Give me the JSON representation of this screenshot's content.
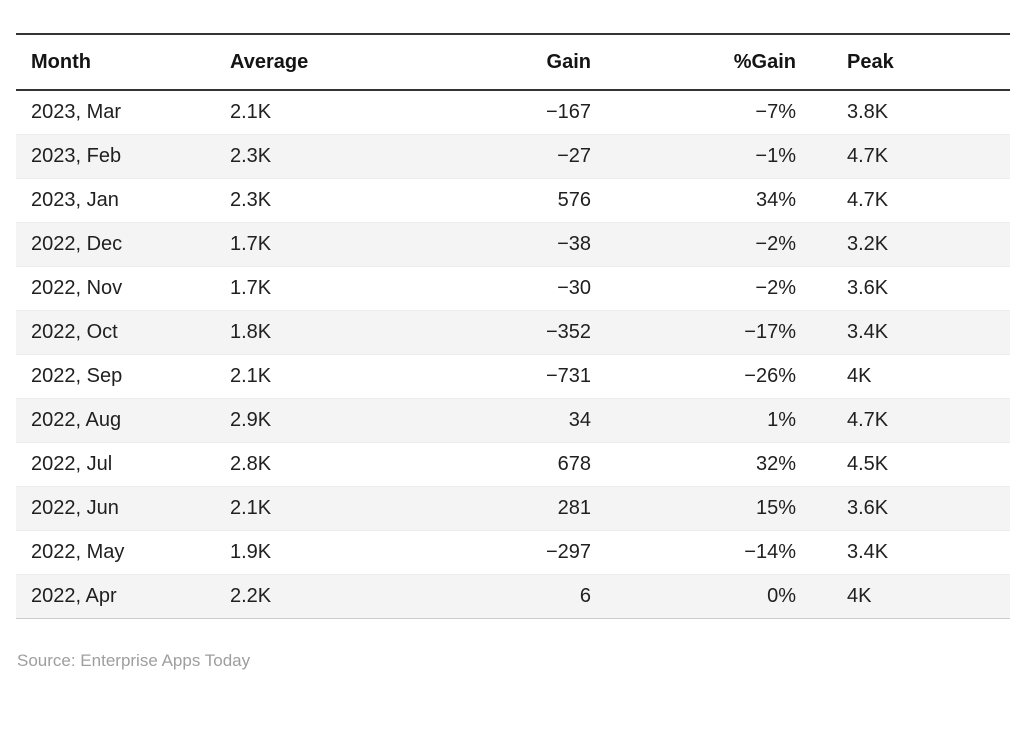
{
  "table": {
    "columns": [
      {
        "label": "Month",
        "align": "left"
      },
      {
        "label": "Average",
        "align": "left"
      },
      {
        "label": "Gain",
        "align": "right"
      },
      {
        "label": "%Gain",
        "align": "right"
      },
      {
        "label": "Peak",
        "align": "left"
      }
    ],
    "rows": [
      [
        "2023, Mar",
        "2.1K",
        "−167",
        "−7%",
        "3.8K"
      ],
      [
        "2023, Feb",
        "2.3K",
        "−27",
        "−1%",
        "4.7K"
      ],
      [
        "2023, Jan",
        "2.3K",
        "576",
        "34%",
        "4.7K"
      ],
      [
        "2022, Dec",
        "1.7K",
        "−38",
        "−2%",
        "3.2K"
      ],
      [
        "2022, Nov",
        "1.7K",
        "−30",
        "−2%",
        "3.6K"
      ],
      [
        "2022, Oct",
        "1.8K",
        "−352",
        "−17%",
        "3.4K"
      ],
      [
        "2022, Sep",
        "2.1K",
        "−731",
        "−26%",
        "4K"
      ],
      [
        "2022, Aug",
        "2.9K",
        "34",
        "1%",
        "4.7K"
      ],
      [
        "2022, Jul",
        "2.8K",
        "678",
        "32%",
        "4.5K"
      ],
      [
        "2022, Jun",
        "2.1K",
        "281",
        "15%",
        "3.6K"
      ],
      [
        "2022, May",
        "1.9K",
        "−297",
        "−14%",
        "3.4K"
      ],
      [
        "2022, Apr",
        "2.2K",
        "6",
        "0%",
        "4K"
      ]
    ]
  },
  "footer": {
    "source_label": "Source: Enterprise Apps Today"
  },
  "colors": {
    "border-strong": "#343434",
    "border-light": "#cccccc",
    "row-divider": "#ececec",
    "stripe": "#f4f4f4",
    "text": "#202020",
    "header-text": "#141414",
    "muted": "#9e9e9e"
  },
  "chart_data": {
    "type": "table",
    "title": "",
    "categories": [
      "2023, Mar",
      "2023, Feb",
      "2023, Jan",
      "2022, Dec",
      "2022, Nov",
      "2022, Oct",
      "2022, Sep",
      "2022, Aug",
      "2022, Jul",
      "2022, Jun",
      "2022, May",
      "2022, Apr"
    ],
    "series": [
      {
        "name": "Average",
        "values": [
          "2.1K",
          "2.3K",
          "2.3K",
          "1.7K",
          "1.7K",
          "1.8K",
          "2.1K",
          "2.9K",
          "2.8K",
          "2.1K",
          "1.9K",
          "2.2K"
        ]
      },
      {
        "name": "Gain",
        "values": [
          -167,
          -27,
          576,
          -38,
          -30,
          -352,
          -731,
          34,
          678,
          281,
          -297,
          6
        ]
      },
      {
        "name": "%Gain",
        "values": [
          -7,
          -1,
          34,
          -2,
          -2,
          -17,
          -26,
          1,
          32,
          15,
          -14,
          0
        ]
      },
      {
        "name": "Peak",
        "values": [
          "3.8K",
          "4.7K",
          "4.7K",
          "3.2K",
          "3.6K",
          "3.4K",
          "4K",
          "4.7K",
          "4.5K",
          "3.6K",
          "3.4K",
          "4K"
        ]
      }
    ],
    "legend": false,
    "grid": false,
    "source": "Enterprise Apps Today"
  }
}
